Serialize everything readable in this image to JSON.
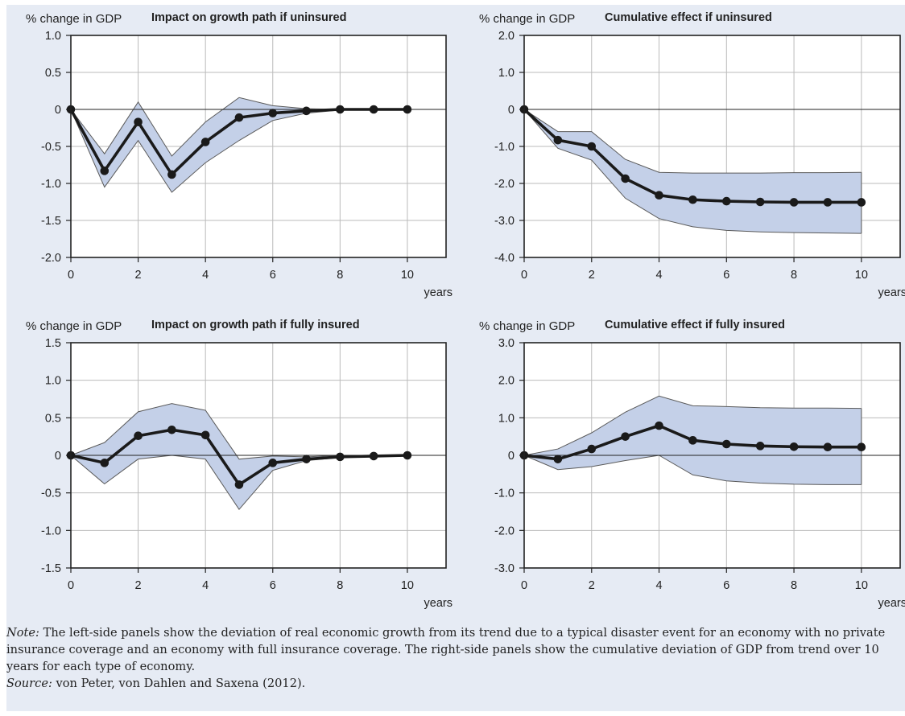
{
  "chart_data": [
    {
      "type": "line",
      "title": "Impact on growth path if uninsured",
      "ylabel": "% change in GDP",
      "xlabel": "years",
      "xlim": [
        0,
        10
      ],
      "ylim": [
        -2.0,
        1.0
      ],
      "yticks": [
        "1.0",
        "0.5",
        "0",
        "-0.5",
        "-1.0",
        "-1.5",
        "-2.0"
      ],
      "ytick_values": [
        1.0,
        0.5,
        0,
        -0.5,
        -1.0,
        -1.5,
        -2.0
      ],
      "xticks": [
        "0",
        "2",
        "4",
        "6",
        "8",
        "10"
      ],
      "xtick_values": [
        0,
        2,
        4,
        6,
        8,
        10
      ],
      "grid": true,
      "x": [
        0,
        1,
        2,
        3,
        4,
        5,
        6,
        7,
        8,
        9,
        10
      ],
      "series": [
        {
          "role": "estimate",
          "values": [
            0,
            -0.83,
            -0.17,
            -0.88,
            -0.44,
            -0.11,
            -0.05,
            -0.02,
            0,
            0,
            0
          ]
        },
        {
          "role": "upper",
          "values": [
            0,
            -0.6,
            0.1,
            -0.63,
            -0.17,
            0.16,
            0.05,
            0.01,
            0,
            0,
            0
          ]
        },
        {
          "role": "lower",
          "values": [
            0,
            -1.05,
            -0.42,
            -1.12,
            -0.72,
            -0.42,
            -0.15,
            -0.05,
            -0.01,
            0,
            0
          ]
        }
      ]
    },
    {
      "type": "line",
      "title": "Cumulative effect if uninsured",
      "ylabel": "% change in GDP",
      "xlabel": "years",
      "xlim": [
        0,
        10
      ],
      "ylim": [
        -4.0,
        2.0
      ],
      "yticks": [
        "2.0",
        "1.0",
        "0",
        "-1.0",
        "-2.0",
        "-3.0",
        "-4.0"
      ],
      "ytick_values": [
        2.0,
        1.0,
        0,
        -1.0,
        -2.0,
        -3.0,
        -4.0
      ],
      "xticks": [
        "0",
        "2",
        "4",
        "6",
        "8",
        "10"
      ],
      "xtick_values": [
        0,
        2,
        4,
        6,
        8,
        10
      ],
      "grid": true,
      "x": [
        0,
        1,
        2,
        3,
        4,
        5,
        6,
        7,
        8,
        9,
        10
      ],
      "series": [
        {
          "role": "estimate",
          "values": [
            0,
            -0.83,
            -1.0,
            -1.87,
            -2.32,
            -2.44,
            -2.48,
            -2.5,
            -2.51,
            -2.51,
            -2.51
          ]
        },
        {
          "role": "upper",
          "values": [
            0,
            -0.6,
            -0.6,
            -1.35,
            -1.7,
            -1.72,
            -1.72,
            -1.72,
            -1.71,
            -1.71,
            -1.7
          ]
        },
        {
          "role": "lower",
          "values": [
            0,
            -1.05,
            -1.37,
            -2.4,
            -2.95,
            -3.17,
            -3.27,
            -3.31,
            -3.33,
            -3.34,
            -3.35
          ]
        }
      ]
    },
    {
      "type": "line",
      "title": "Impact on growth path if fully insured",
      "ylabel": "% change in GDP",
      "xlabel": "years",
      "xlim": [
        0,
        10
      ],
      "ylim": [
        -1.5,
        1.5
      ],
      "yticks": [
        "1.5",
        "1.0",
        "0.5",
        "0",
        "-0.5",
        "-1.0",
        "-1.5"
      ],
      "ytick_values": [
        1.5,
        1.0,
        0.5,
        0,
        -0.5,
        -1.0,
        -1.5
      ],
      "xticks": [
        "0",
        "2",
        "4",
        "6",
        "8",
        "10"
      ],
      "xtick_values": [
        0,
        2,
        4,
        6,
        8,
        10
      ],
      "grid": true,
      "x": [
        0,
        1,
        2,
        3,
        4,
        5,
        6,
        7,
        8,
        9,
        10
      ],
      "series": [
        {
          "role": "estimate",
          "values": [
            0,
            -0.1,
            0.26,
            0.34,
            0.27,
            -0.39,
            -0.1,
            -0.05,
            -0.02,
            -0.01,
            0
          ]
        },
        {
          "role": "upper",
          "values": [
            0,
            0.17,
            0.58,
            0.69,
            0.6,
            -0.05,
            -0.01,
            -0.02,
            0,
            0,
            0
          ]
        },
        {
          "role": "lower",
          "values": [
            0,
            -0.38,
            -0.05,
            0.0,
            -0.05,
            -0.72,
            -0.2,
            -0.07,
            -0.03,
            -0.01,
            0
          ]
        }
      ]
    },
    {
      "type": "line",
      "title": "Cumulative effect if fully insured",
      "ylabel": "% change in GDP",
      "xlabel": "years",
      "xlim": [
        0,
        10
      ],
      "ylim": [
        -3.0,
        3.0
      ],
      "yticks": [
        "3.0",
        "2.0",
        "1.0",
        "0",
        "-1.0",
        "-2.0",
        "-3.0"
      ],
      "ytick_values": [
        3.0,
        2.0,
        1.0,
        0,
        -1.0,
        -2.0,
        -3.0
      ],
      "xticks": [
        "0",
        "2",
        "4",
        "6",
        "8",
        "10"
      ],
      "xtick_values": [
        0,
        2,
        4,
        6,
        8,
        10
      ],
      "grid": true,
      "x": [
        0,
        1,
        2,
        3,
        4,
        5,
        6,
        7,
        8,
        9,
        10
      ],
      "series": [
        {
          "role": "estimate",
          "values": [
            0,
            -0.1,
            0.17,
            0.5,
            0.79,
            0.4,
            0.3,
            0.25,
            0.23,
            0.22,
            0.22
          ]
        },
        {
          "role": "upper",
          "values": [
            0,
            0.17,
            0.6,
            1.15,
            1.58,
            1.32,
            1.3,
            1.27,
            1.26,
            1.26,
            1.25
          ]
        },
        {
          "role": "lower",
          "values": [
            0,
            -0.38,
            -0.3,
            -0.14,
            0.0,
            -0.52,
            -0.68,
            -0.74,
            -0.77,
            -0.78,
            -0.78
          ]
        }
      ]
    }
  ],
  "colors": {
    "background": "#e6ebf4",
    "band_fill": "#c4d0e8",
    "band_edge": "#5a5a5a",
    "estimate_line": "#1a1a1a",
    "axis": "#222222",
    "grid": "#bbbbbb"
  },
  "note": {
    "label": "Note:",
    "text": " The left-side panels show the deviation of real economic growth from its trend due to a typical disaster event for an economy with no private insurance coverage and an economy with full insurance coverage. The right-side panels show the cumulative deviation of GDP from trend over 10 years for each type of economy."
  },
  "source": {
    "label": "Source:",
    "text": " von Peter, von Dahlen and Saxena (2012)."
  }
}
